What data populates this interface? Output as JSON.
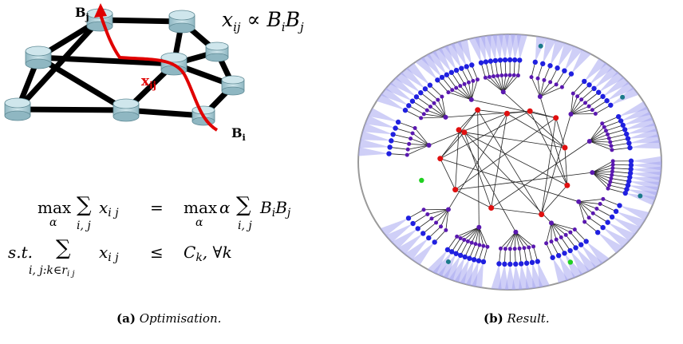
{
  "panel_a": {
    "label_bj": "B",
    "label_bj_sub": "j",
    "label_bi": "B",
    "label_bi_sub": "i",
    "label_xij": "x",
    "label_xij_sub": "ij",
    "proportional_formula": {
      "lhs": "x",
      "lhs_sub": "ij",
      "symbol": "∝",
      "rhs_1": "B",
      "rhs_1_sub": "i",
      "rhs_2": "B",
      "rhs_2_sub": "j"
    },
    "optimization": {
      "row1_max": "max",
      "row1_alpha": "α",
      "row1_sum": "∑",
      "row1_sum_sub": "i, j",
      "row1_term": "x",
      "row1_term_sub": "i j",
      "row1_relation": "=",
      "row1_rhs_max": "max",
      "row1_rhs_alpha_sub": "α",
      "row1_rhs_alpha": "α",
      "row1_rhs_sum": "∑",
      "row1_rhs_sum_sub": "i, j",
      "row1_rhs_term": "B",
      "row1_rhs_term_sub_i": "i",
      "row1_rhs_term2": "B",
      "row1_rhs_term_sub_j": "j",
      "row2_st": "s.t.",
      "row2_sum": "∑",
      "row2_sum_sub": "i, j:k∈r",
      "row2_sum_sub2": "i j",
      "row2_term": "x",
      "row2_term_sub": "i j",
      "row2_relation": "≤",
      "row2_rhs": "C",
      "row2_rhs_sub": "k",
      "row2_rhs_tail": ", ∀k"
    },
    "caption_label": "(a)",
    "caption_text": "Optimisation."
  },
  "panel_b": {
    "caption_label": "(b)",
    "caption_text": "Result."
  },
  "colors": {
    "router": "#a9cdd6",
    "router_edge": "#5f8a95",
    "link": "#000000",
    "path": "#e00000",
    "leaf_fan": "#a8a8f0",
    "leaf_node": "#2020e0",
    "inner_node": "#5a18b0",
    "core_node": "#e01010",
    "teal_node": "#1a7a8a",
    "green_node": "#20d020"
  }
}
